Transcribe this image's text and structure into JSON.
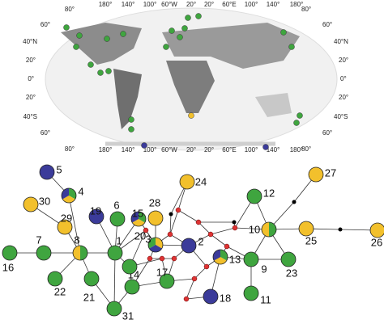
{
  "map": {
    "lon_labels_top": [
      "180°",
      "140°",
      "100°",
      "60°W",
      "20°",
      "20°",
      "60°E",
      "100°",
      "140°",
      "180°"
    ],
    "lon_labels_bottom": [
      "180°",
      "140°",
      "100°",
      "60°W",
      "20°",
      "20°",
      "60°E",
      "100°",
      "140°",
      "180°"
    ],
    "lat_labels_left": [
      "80°",
      "60°",
      "40°N",
      "20°",
      "0°",
      "20°",
      "40°S",
      "60°",
      "80°"
    ],
    "lat_labels_right": [
      "80°",
      "60°",
      "40°N",
      "20°",
      "0°",
      "20°",
      "40°S",
      "60°",
      "80°"
    ]
  },
  "network": {
    "nodes": [
      "1",
      "2",
      "3",
      "4",
      "5",
      "6",
      "7",
      "8",
      "9",
      "10",
      "11",
      "12",
      "13",
      "14",
      "15",
      "16",
      "17",
      "18",
      "19",
      "20",
      "21",
      "22",
      "23",
      "24",
      "25",
      "26",
      "27",
      "28",
      "29",
      "30",
      "31"
    ]
  }
}
